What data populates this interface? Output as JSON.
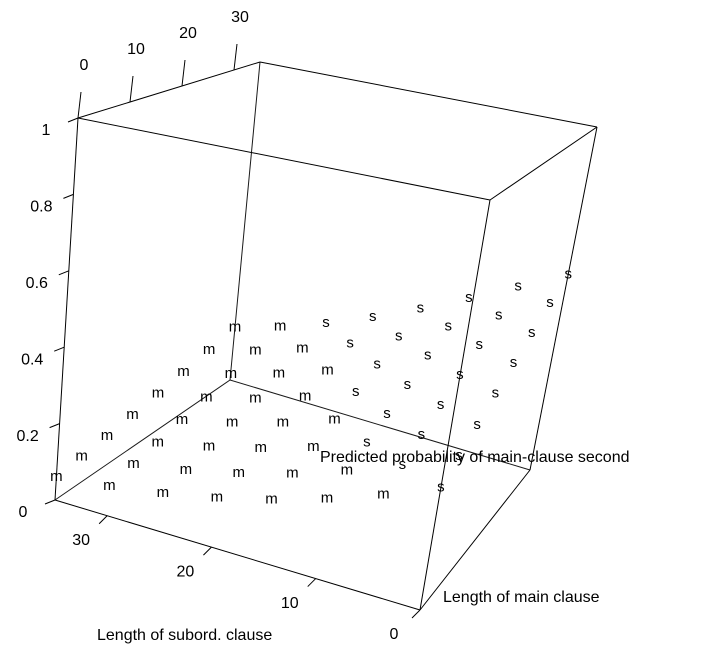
{
  "chart_data": {
    "type": "scatter3d",
    "xlabel": "Length of subord. clause",
    "ylabel": "Length of main clause",
    "zlabel": "Predicted probability of main-clause second",
    "xlim": [
      0,
      35
    ],
    "ylim": [
      0,
      35
    ],
    "zlim": [
      0,
      1
    ],
    "xticks": [
      0,
      10,
      20,
      30
    ],
    "yticks": [
      0,
      10,
      20,
      30
    ],
    "zticks": [
      0,
      0.2,
      0.4,
      0.6,
      0.8,
      1
    ],
    "series": [
      {
        "symbol": "m",
        "color": "#ff2a2a",
        "x": [
          5,
          10,
          10,
          15,
          15,
          15,
          15,
          20,
          20,
          20,
          20,
          20,
          20,
          25,
          25,
          25,
          25,
          25,
          25,
          25,
          30,
          30,
          30,
          30,
          30,
          30,
          30,
          30,
          35,
          35,
          35,
          35,
          35,
          35,
          35,
          35
        ],
        "y": [
          0,
          0,
          5,
          0,
          5,
          10,
          15,
          0,
          5,
          10,
          15,
          20,
          25,
          0,
          5,
          10,
          15,
          20,
          25,
          30,
          0,
          5,
          10,
          15,
          20,
          25,
          30,
          35,
          0,
          5,
          10,
          15,
          20,
          25,
          30,
          35
        ],
        "z": [
          0.246,
          0.199,
          0.226,
          0.159,
          0.182,
          0.207,
          0.235,
          0.126,
          0.145,
          0.166,
          0.19,
          0.216,
          0.244,
          0.099,
          0.114,
          0.132,
          0.152,
          0.173,
          0.198,
          0.225,
          0.077,
          0.09,
          0.104,
          0.12,
          0.138,
          0.158,
          0.181,
          0.206,
          0.06,
          0.07,
          0.081,
          0.094,
          0.109,
          0.125,
          0.144,
          0.165
        ]
      },
      {
        "symbol": "s",
        "color": "#3a3aff",
        "x": [
          0,
          0,
          0,
          0,
          0,
          0,
          0,
          0,
          5,
          5,
          5,
          5,
          5,
          5,
          5,
          10,
          10,
          10,
          10,
          10,
          10,
          15,
          15,
          15,
          15,
          20,
          20,
          25
        ],
        "y": [
          0,
          5,
          10,
          15,
          20,
          25,
          30,
          35,
          5,
          10,
          15,
          20,
          25,
          30,
          35,
          10,
          15,
          20,
          25,
          30,
          35,
          20,
          25,
          30,
          35,
          30,
          35,
          35
        ],
        "z": [
          0.299,
          0.334,
          0.371,
          0.41,
          0.449,
          0.489,
          0.53,
          0.57,
          0.277,
          0.31,
          0.346,
          0.383,
          0.422,
          0.462,
          0.502,
          0.255,
          0.287,
          0.321,
          0.358,
          0.396,
          0.435,
          0.265,
          0.298,
          0.333,
          0.37,
          0.276,
          0.309,
          0.254
        ]
      }
    ]
  }
}
